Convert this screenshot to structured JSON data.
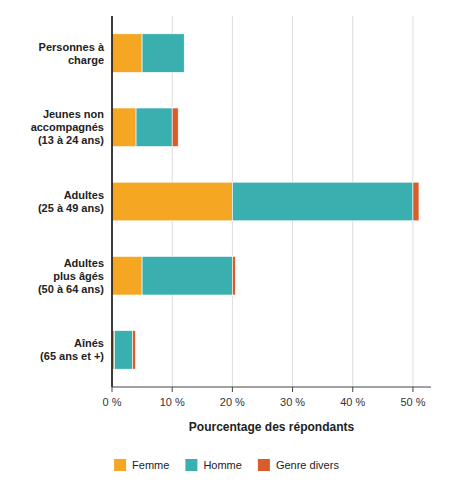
{
  "chart_data": {
    "type": "bar",
    "orientation": "horizontal",
    "stacked": true,
    "categories": [
      "Personnes à\ncharge",
      "Jeunes non\naccompagnés\n(13 à 24 ans)",
      "Adultes\n(25 à 49 ans)",
      "Adultes\nplus âgés\n(50 à 64 ans)",
      "Aînés\n(65 ans et +)"
    ],
    "series": [
      {
        "name": "Femme",
        "color": "#F5A623",
        "values": [
          5.0,
          4.0,
          20.0,
          5.0,
          0.4
        ]
      },
      {
        "name": "Homme",
        "color": "#3AAFB0",
        "values": [
          7.0,
          6.0,
          30.0,
          15.0,
          3.0
        ]
      },
      {
        "name": "Genre divers",
        "color": "#D95C2C",
        "values": [
          0.0,
          1.0,
          1.0,
          0.5,
          0.5
        ]
      }
    ],
    "xlabel": "Pourcentage des répondants",
    "xlim": [
      0,
      53
    ],
    "xticks": [
      {
        "value": 0,
        "label": "0 %"
      },
      {
        "value": 10,
        "label": "10 %"
      },
      {
        "value": 20,
        "label": "20 %"
      },
      {
        "value": 30,
        "label": "30 %"
      },
      {
        "value": 40,
        "label": "40 %"
      },
      {
        "value": 50,
        "label": "50 %"
      }
    ],
    "grid": true,
    "legend": "bottom"
  }
}
